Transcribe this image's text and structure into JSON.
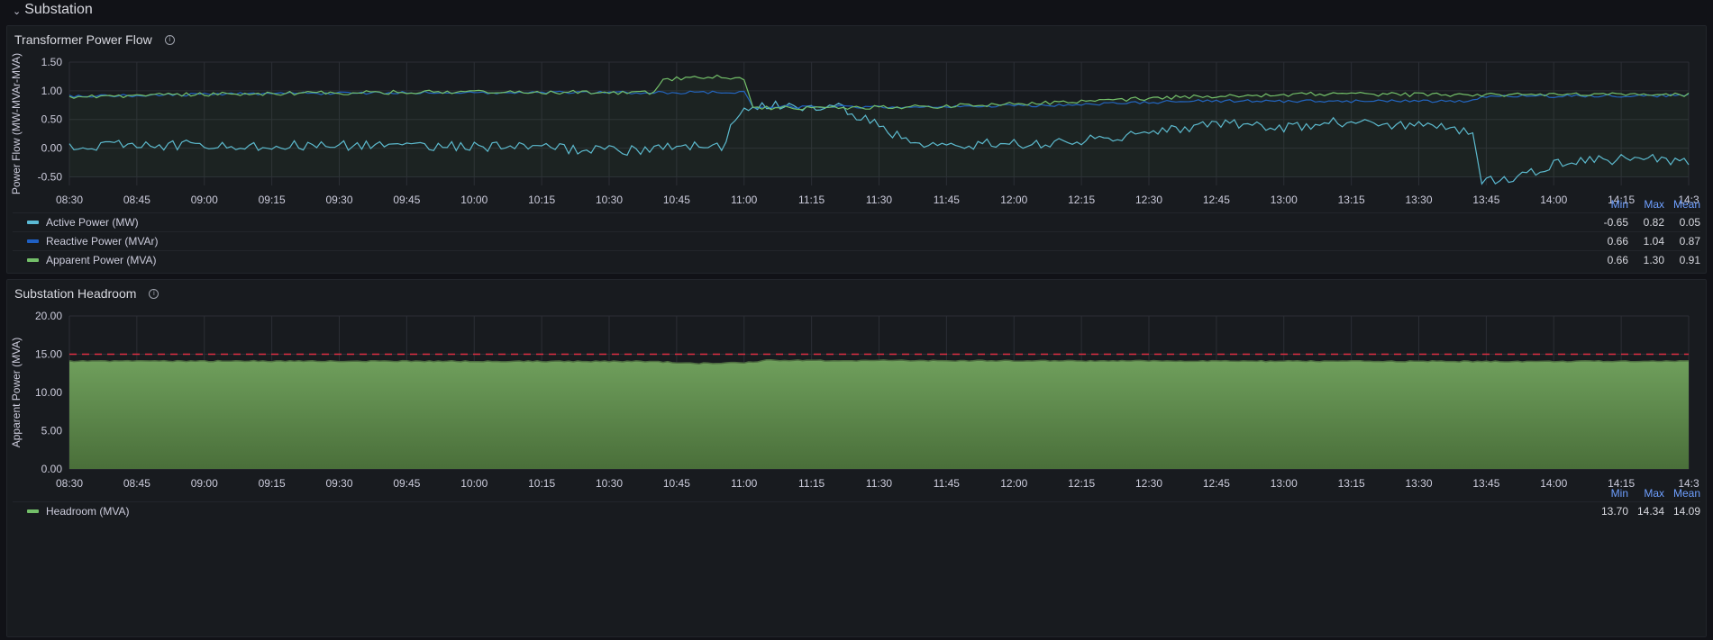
{
  "row": {
    "title": "Substation",
    "chevron_icon": "chevron-down-icon"
  },
  "panels": [
    {
      "title": "Transformer Power Flow",
      "info_icon": "info-icon",
      "legend_headers": [
        "Min",
        "Max",
        "Mean"
      ],
      "legend": [
        {
          "name": "Active Power (MW)",
          "color": "#5bbad4",
          "min": "-0.65",
          "max": "0.82",
          "mean": "0.05"
        },
        {
          "name": "Reactive Power (MVAr)",
          "color": "#1f60c4",
          "min": "0.66",
          "max": "1.04",
          "mean": "0.87"
        },
        {
          "name": "Apparent Power (MVA)",
          "color": "#73bf69",
          "min": "0.66",
          "max": "1.30",
          "mean": "0.91"
        }
      ]
    },
    {
      "title": "Substation Headroom",
      "info_icon": "info-icon",
      "legend_headers": [
        "Min",
        "Max",
        "Mean"
      ],
      "legend": [
        {
          "name": "Headroom (MVA)",
          "color": "#73bf69",
          "min": "13.70",
          "max": "14.34",
          "mean": "14.09"
        }
      ]
    }
  ],
  "chart_data": [
    {
      "type": "line",
      "ylabel": "Power Flow (MW-MVAr-MVA)",
      "y_ticks": [
        "1.50",
        "1.00",
        "0.50",
        "0.00",
        "-0.50"
      ],
      "ylim": [
        -0.65,
        1.5
      ],
      "x_ticks": [
        "08:30",
        "08:45",
        "09:00",
        "09:15",
        "09:30",
        "09:45",
        "10:00",
        "10:15",
        "10:30",
        "10:45",
        "11:00",
        "11:15",
        "11:30",
        "11:45",
        "12:00",
        "12:15",
        "12:30",
        "12:45",
        "13:00",
        "13:15",
        "13:30",
        "13:45",
        "14:00",
        "14:15",
        "14:3"
      ],
      "x_range_minutes": [
        0,
        360
      ],
      "series": [
        {
          "name": "Active Power (MW)",
          "color": "#5bbad4",
          "x": [
            0,
            40,
            80,
            130,
            132,
            145,
            150,
            152,
            170,
            190,
            193,
            220,
            250,
            253,
            270,
            280,
            300,
            312,
            314,
            320,
            330,
            335,
            360
          ],
          "y": [
            0.05,
            0.05,
            0.05,
            -0.05,
            0.05,
            0.05,
            0.75,
            0.72,
            0.75,
            0.0,
            0.05,
            0.1,
            0.35,
            0.45,
            0.35,
            0.45,
            0.4,
            0.3,
            -0.55,
            -0.55,
            -0.3,
            -0.2,
            -0.2
          ]
        },
        {
          "name": "Reactive Power (MVAr)",
          "color": "#1f60c4",
          "x": [
            0,
            40,
            80,
            130,
            132,
            145,
            150,
            152,
            190,
            220,
            250,
            300,
            312,
            314,
            360
          ],
          "y": [
            0.9,
            0.95,
            0.97,
            0.97,
            0.97,
            0.97,
            0.97,
            0.72,
            0.72,
            0.75,
            0.82,
            0.82,
            0.82,
            0.9,
            0.92
          ]
        },
        {
          "name": "Apparent Power (MVA)",
          "color": "#73bf69",
          "x": [
            0,
            40,
            80,
            130,
            132,
            145,
            150,
            152,
            190,
            220,
            250,
            280,
            312,
            314,
            360
          ],
          "y": [
            0.9,
            0.95,
            0.98,
            0.97,
            1.2,
            1.25,
            1.2,
            0.7,
            0.72,
            0.8,
            0.9,
            0.95,
            0.92,
            0.93,
            0.93
          ]
        }
      ]
    },
    {
      "type": "area",
      "ylabel": "Apparent Power (MVA)",
      "y_ticks": [
        "20.00",
        "15.00",
        "10.00",
        "5.00",
        "0.00"
      ],
      "ylim": [
        0,
        20
      ],
      "threshold": 15,
      "x_ticks": [
        "08:30",
        "08:45",
        "09:00",
        "09:15",
        "09:30",
        "09:45",
        "10:00",
        "10:15",
        "10:30",
        "10:45",
        "11:00",
        "11:15",
        "11:30",
        "11:45",
        "12:00",
        "12:15",
        "12:30",
        "12:45",
        "13:00",
        "13:15",
        "13:30",
        "13:45",
        "14:00",
        "14:15",
        "14:3"
      ],
      "x_range_minutes": [
        0,
        360
      ],
      "series": [
        {
          "name": "Headroom (MVA)",
          "color": "#73bf69",
          "x": [
            0,
            60,
            130,
            140,
            150,
            155,
            200,
            260,
            320,
            360
          ],
          "y": [
            14.1,
            14.1,
            14.05,
            13.8,
            13.9,
            14.2,
            14.15,
            14.1,
            14.05,
            14.1
          ]
        }
      ]
    }
  ]
}
